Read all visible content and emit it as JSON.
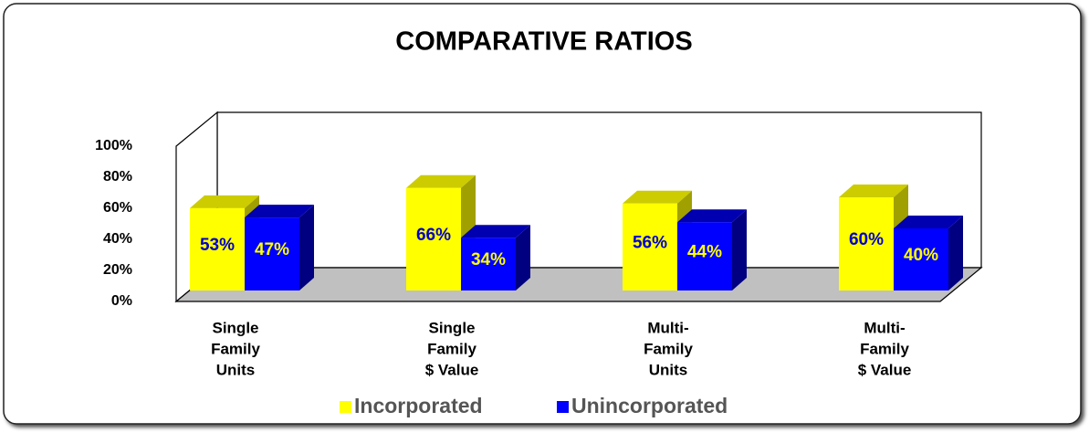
{
  "chart_data": {
    "type": "bar3d",
    "title": "COMPARATIVE RATIOS",
    "categories": [
      [
        "Single",
        "Family",
        "Units"
      ],
      [
        "Single",
        "Family",
        "$ Value"
      ],
      [
        "Multi-",
        "Family",
        "Units"
      ],
      [
        "Multi-",
        "Family",
        "$ Value"
      ]
    ],
    "series": [
      {
        "name": "Incorporated",
        "color": "#ffff00",
        "values": [
          53,
          66,
          56,
          60
        ],
        "value_labels": [
          "53%",
          "66%",
          "56%",
          "60%"
        ]
      },
      {
        "name": "Unincorporated",
        "color": "#0000ff",
        "values": [
          47,
          34,
          44,
          40
        ],
        "value_labels": [
          "47%",
          "34%",
          "44%",
          "40%"
        ]
      }
    ],
    "ylim": [
      0,
      100
    ],
    "yticks": [
      {
        "value": 0,
        "label": "0%"
      },
      {
        "value": 20,
        "label": "20%"
      },
      {
        "value": 40,
        "label": "40%"
      },
      {
        "value": 60,
        "label": "60%"
      },
      {
        "value": 80,
        "label": "80%"
      },
      {
        "value": 100,
        "label": "100%"
      }
    ]
  }
}
